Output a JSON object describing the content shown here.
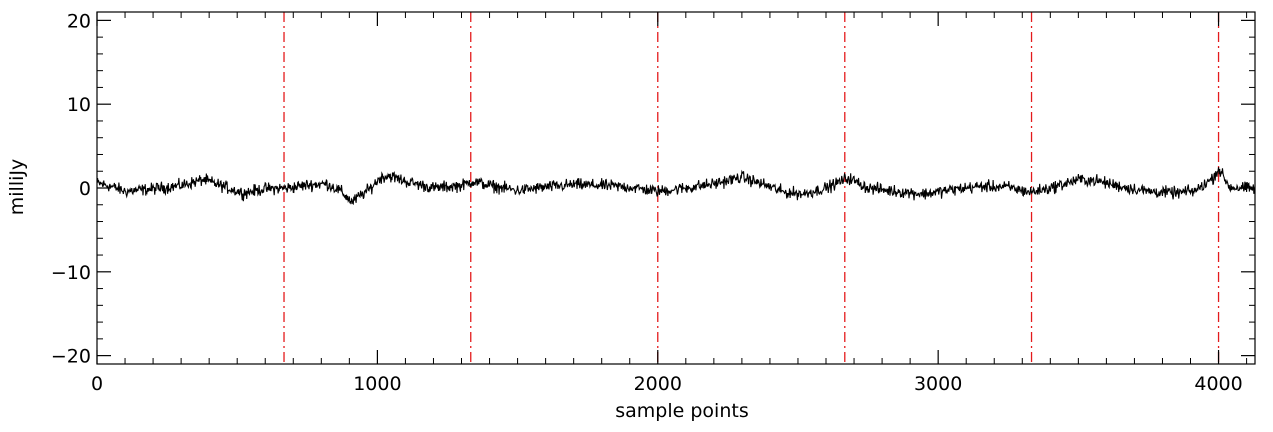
{
  "chart_data": {
    "type": "line",
    "title": "",
    "xlabel": "sample points",
    "ylabel": "milliJy",
    "xlim": [
      0,
      4130
    ],
    "ylim": [
      -21,
      21
    ],
    "x_ticks": [
      0,
      1000,
      2000,
      3000,
      4000
    ],
    "x_tick_labels": [
      "0",
      "1000",
      "2000",
      "3000",
      "4000"
    ],
    "y_ticks": [
      -20,
      -10,
      0,
      10,
      20
    ],
    "y_tick_labels": [
      "−20",
      "−10",
      "0",
      "10",
      "20"
    ],
    "grid": false,
    "vlines": [
      667,
      1333,
      2000,
      2667,
      3333,
      4000
    ],
    "vline_style": "dash-dot",
    "series": [
      {
        "x": [
          0,
          50,
          100,
          200,
          300,
          380,
          450,
          520,
          600,
          680,
          760,
          820,
          870,
          910,
          935,
          970,
          1010,
          1040,
          1100,
          1200,
          1300,
          1340,
          1400,
          1500,
          1600,
          1700,
          1800,
          1900,
          2000,
          2100,
          2200,
          2300,
          2380,
          2450,
          2520,
          2600,
          2680,
          2750,
          2850,
          2950,
          3050,
          3150,
          3250,
          3330,
          3400,
          3500,
          3560,
          3650,
          3750,
          3850,
          3920,
          3980,
          4000,
          4040,
          4130
        ],
        "y": [
          0.6,
          0.2,
          -0.4,
          -0.1,
          0.3,
          1.0,
          0.2,
          -0.6,
          -0.1,
          0.0,
          0.4,
          0.5,
          -0.4,
          -1.7,
          -1.0,
          -0.2,
          1.2,
          1.5,
          0.8,
          0.0,
          0.3,
          0.8,
          0.3,
          -0.3,
          0.1,
          0.4,
          0.3,
          0.1,
          -0.4,
          0.0,
          0.5,
          1.3,
          0.4,
          -0.5,
          -0.7,
          0.0,
          1.2,
          0.0,
          -0.4,
          -0.7,
          -0.2,
          0.2,
          0.1,
          -0.5,
          0.0,
          1.0,
          0.9,
          0.2,
          -0.4,
          -0.6,
          -0.3,
          1.2,
          2.3,
          0.1,
          -0.1
        ],
        "noise_amplitude": 0.5,
        "color": "#000000"
      }
    ],
    "colors": {
      "series": "#000000",
      "vlines": "#e41a1c",
      "axes": "#000000"
    }
  }
}
